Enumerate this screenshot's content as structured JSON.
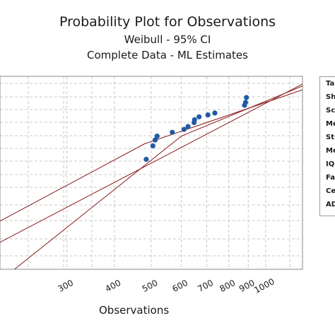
{
  "chart_data": {
    "type": "scatter",
    "title": "Probability Plot for Observations",
    "subtitle": "Weibull - 95% CI",
    "subtitle2": "Complete Data - ML Estimates",
    "xlabel": "Observations",
    "ylabel": "",
    "xscale": "log",
    "xlim": [
      200,
      1250
    ],
    "x_ticks": [
      300,
      400,
      500,
      600,
      700,
      800,
      900,
      1000
    ],
    "grid": true,
    "points": [
      {
        "x": 485,
        "y": 0.14
      },
      {
        "x": 505,
        "y": 0.28
      },
      {
        "x": 512,
        "y": 0.34
      },
      {
        "x": 518,
        "y": 0.38
      },
      {
        "x": 568,
        "y": 0.42
      },
      {
        "x": 610,
        "y": 0.45
      },
      {
        "x": 625,
        "y": 0.48
      },
      {
        "x": 648,
        "y": 0.52
      },
      {
        "x": 650,
        "y": 0.55
      },
      {
        "x": 668,
        "y": 0.58
      },
      {
        "x": 705,
        "y": 0.6
      },
      {
        "x": 735,
        "y": 0.62
      },
      {
        "x": 880,
        "y": 0.7
      },
      {
        "x": 885,
        "y": 0.73
      },
      {
        "x": 890,
        "y": 0.78
      }
    ],
    "fit_line": [
      {
        "x": 200,
        "y": -0.72
      },
      {
        "x": 1250,
        "y": 0.92
      }
    ],
    "ci_lower": [
      {
        "x": 200,
        "y": -0.5
      },
      {
        "x": 480,
        "y": 0.3
      },
      {
        "x": 1250,
        "y": 0.86
      }
    ],
    "ci_upper": [
      {
        "x": 200,
        "y": -1.12
      },
      {
        "x": 600,
        "y": 0.38
      },
      {
        "x": 1250,
        "y": 0.9
      }
    ],
    "legend": {
      "placement": "right",
      "rows": [
        "Ta",
        "Sh",
        "Sc",
        "Me",
        "St",
        "Me",
        "IQ",
        "Fa",
        "Ce",
        "AD"
      ]
    },
    "colors": {
      "points": "#1f5aa6",
      "lines": "#8b1a1a",
      "grid": "#c8c8c8",
      "frame": "#8a8a8a"
    }
  }
}
